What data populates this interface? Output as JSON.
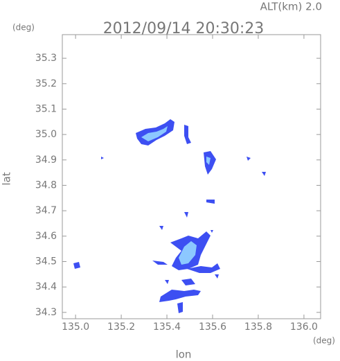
{
  "chart_data": {
    "type": "map",
    "title": "2012/09/14 20:30:23",
    "subtitle": "ALT(km) 2.0",
    "x_label": "lon",
    "y_label": "lat",
    "x_unit": "(deg)",
    "y_unit": "(deg)",
    "xlim": [
      134.942,
      136.073
    ],
    "ylim": [
      34.275,
      35.393
    ],
    "xticks": [
      {
        "value": 135.0,
        "label": "135.0"
      },
      135.2,
      135.4,
      135.6,
      135.8,
      {
        "value": 136.0,
        "label": "136.0"
      }
    ],
    "yticks": [
      34.3,
      34.4,
      34.5,
      34.6,
      34.7,
      34.8,
      34.9,
      {
        "value": 35.0,
        "label": "35.0"
      },
      35.1,
      35.2,
      35.3
    ]
  }
}
